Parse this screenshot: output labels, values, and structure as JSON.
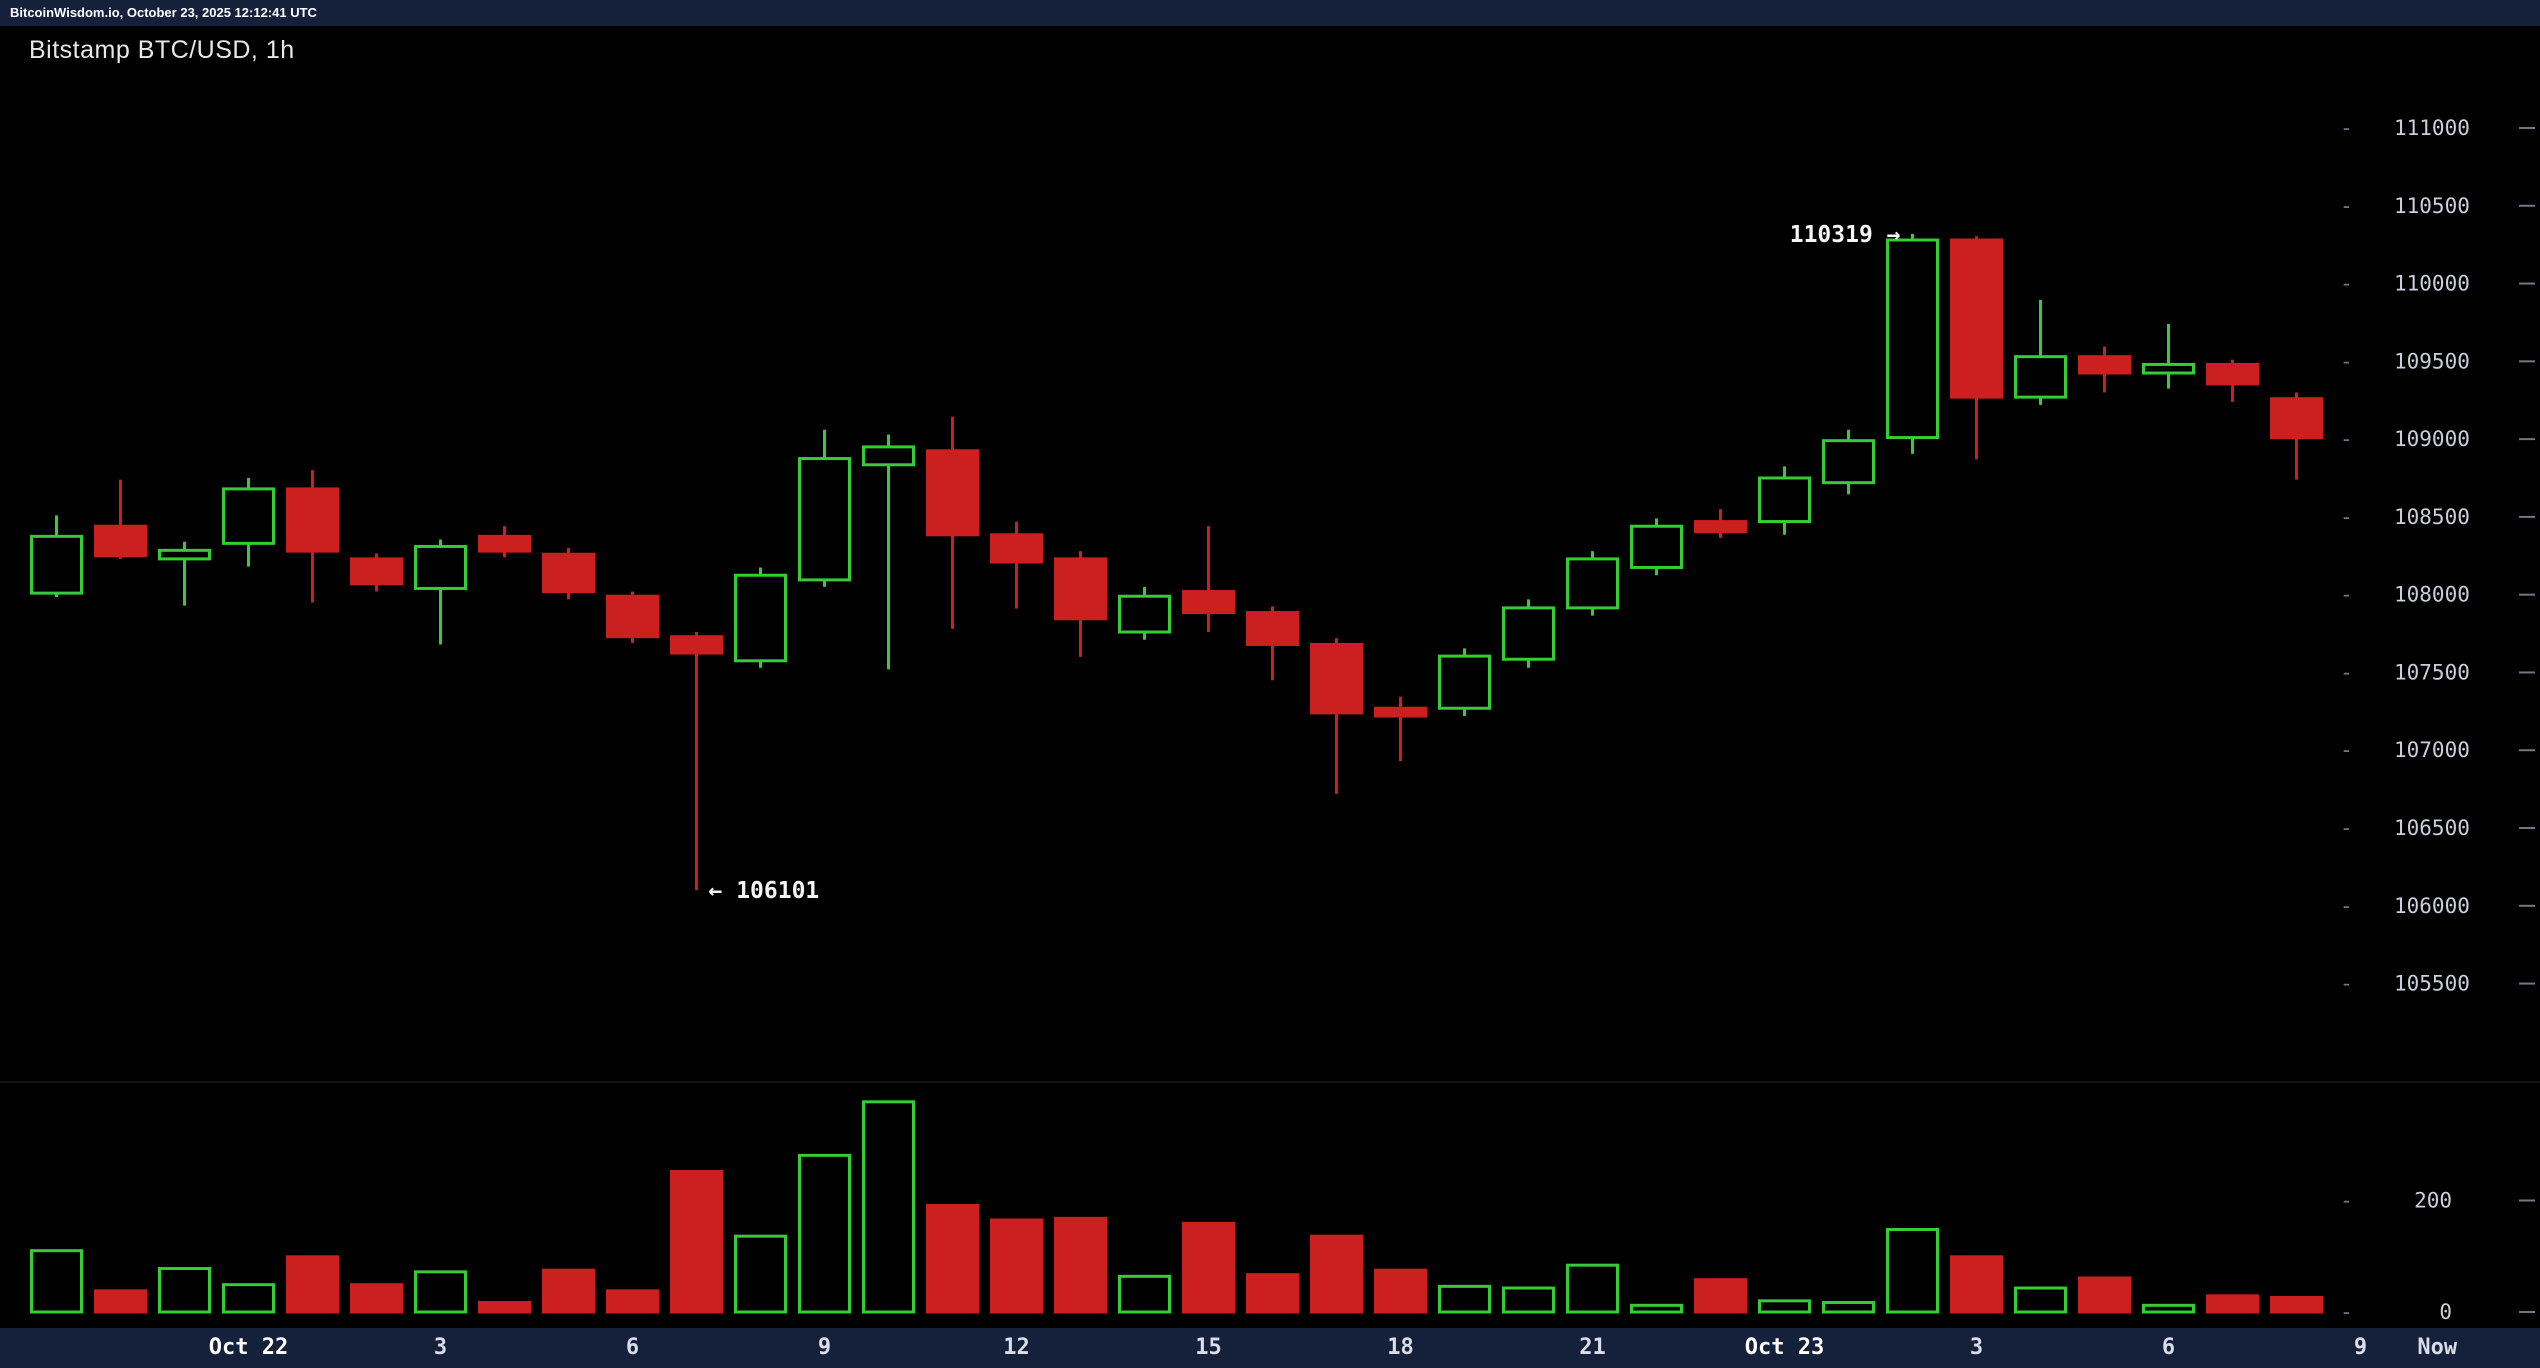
{
  "topbar": {
    "text": "BitcoinWisdom.io, October 23, 2025 12:12:41 UTC"
  },
  "colors": {
    "background": "#000000",
    "bar_background": "#15203a",
    "up": "#35cc35",
    "down": "#cc2020",
    "axis_text": "#c9cedb",
    "axis_tick": "#707789",
    "time_text": "#d9dde8",
    "time_text_strong": "#ffffff",
    "annotation": "#f5f5f5",
    "separator": "#262626"
  },
  "chart_data": {
    "type": "candlestick",
    "title": "Bitstamp BTC/USD, 1h",
    "exchange": "Bitstamp",
    "pair": "BTC/USD",
    "interval": "1h",
    "y_axis": {
      "ticks": [
        111000,
        110500,
        110000,
        109500,
        109000,
        108500,
        108000,
        107500,
        107000,
        106500,
        106000,
        105500
      ],
      "range": [
        105500,
        111000
      ]
    },
    "volume_axis": {
      "ticks": [
        200,
        0
      ]
    },
    "x_ticks": [
      {
        "label": "Oct 22",
        "index": 3,
        "strong": true
      },
      {
        "label": "3",
        "index": 6
      },
      {
        "label": "6",
        "index": 9
      },
      {
        "label": "9",
        "index": 12
      },
      {
        "label": "12",
        "index": 15
      },
      {
        "label": "15",
        "index": 18
      },
      {
        "label": "18",
        "index": 21
      },
      {
        "label": "21",
        "index": 24
      },
      {
        "label": "Oct 23",
        "index": 27,
        "strong": true
      },
      {
        "label": "3",
        "index": 30
      },
      {
        "label": "6",
        "index": 33
      },
      {
        "label": "9",
        "index": 36
      },
      {
        "label": "Now",
        "index": 37.2
      }
    ],
    "candle_fields": [
      "open",
      "high",
      "low",
      "close",
      "volume"
    ],
    "candles": [
      [
        108010,
        108510,
        107985,
        108375,
        110
      ],
      [
        108440,
        108740,
        108230,
        108250,
        38
      ],
      [
        108230,
        108340,
        107930,
        108285,
        78
      ],
      [
        108330,
        108750,
        108180,
        108680,
        49
      ],
      [
        108680,
        108800,
        107950,
        108280,
        99
      ],
      [
        108230,
        108265,
        108020,
        108070,
        49
      ],
      [
        108040,
        108355,
        107680,
        108310,
        72
      ],
      [
        108375,
        108440,
        108240,
        108280,
        17
      ],
      [
        108260,
        108300,
        107970,
        108020,
        75
      ],
      [
        107990,
        108020,
        107690,
        107730,
        38
      ],
      [
        107730,
        107760,
        106101,
        107625,
        252
      ],
      [
        107575,
        108175,
        107530,
        108125,
        136
      ],
      [
        108095,
        109060,
        108050,
        108875,
        281
      ],
      [
        108835,
        109030,
        107520,
        108950,
        377
      ],
      [
        108925,
        109145,
        107780,
        108385,
        191
      ],
      [
        108385,
        108470,
        107910,
        108210,
        165
      ],
      [
        108230,
        108280,
        107600,
        107845,
        168
      ],
      [
        107760,
        108050,
        107710,
        107990,
        64
      ],
      [
        108020,
        108440,
        107760,
        107885,
        159
      ],
      [
        107885,
        107925,
        107450,
        107680,
        67
      ],
      [
        107680,
        107720,
        106720,
        107240,
        136
      ],
      [
        107270,
        107345,
        106930,
        107220,
        75
      ],
      [
        107270,
        107655,
        107220,
        107605,
        46
      ],
      [
        107585,
        107970,
        107530,
        107915,
        43
      ],
      [
        107915,
        108280,
        107865,
        108230,
        84
      ],
      [
        108175,
        108490,
        108125,
        108440,
        12
      ],
      [
        108470,
        108550,
        108365,
        108405,
        58
      ],
      [
        108470,
        108825,
        108385,
        108750,
        20
      ],
      [
        108720,
        109060,
        108645,
        108990,
        17
      ],
      [
        109010,
        110319,
        108905,
        110280,
        148
      ],
      [
        110280,
        110305,
        108870,
        109270,
        99
      ],
      [
        109270,
        109895,
        109220,
        109530,
        43
      ],
      [
        109530,
        109595,
        109300,
        109425,
        61
      ],
      [
        109425,
        109740,
        109325,
        109480,
        12
      ],
      [
        109480,
        109510,
        109240,
        109355,
        29
      ],
      [
        109260,
        109300,
        108740,
        109010,
        26
      ]
    ],
    "annotations": [
      {
        "text": "110319 →",
        "price": 110319,
        "candle_index": 29,
        "side": "left"
      },
      {
        "text": "← 106101",
        "price": 106101,
        "candle_index": 10,
        "side": "right"
      }
    ]
  }
}
